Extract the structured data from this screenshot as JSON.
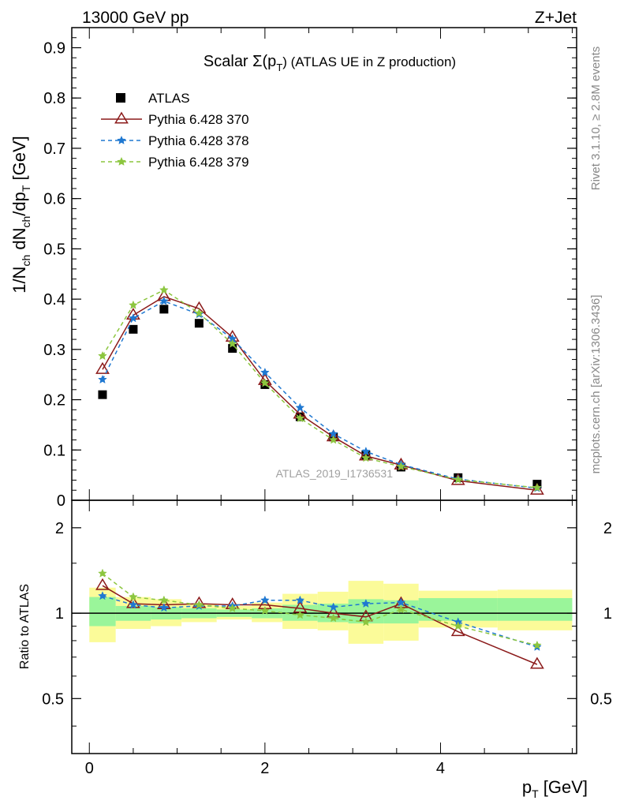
{
  "header": {
    "left": "13000 GeV pp",
    "right": "Z+Jet"
  },
  "side_labels": {
    "rivet": "Rivet 3.1.10, ≥ 2.8M events",
    "mcplots": "mcplots.cern.ch [arXiv:1306.3436]"
  },
  "chart_data": {
    "type": "scatter",
    "title_main": "Scalar Σ(p",
    "title_sub": "T",
    "title_rest": ") (ATLAS UE in Z production)",
    "analysis_id": "ATLAS_2019_I1736531",
    "xlabel": "p",
    "xlabel_sub": "T",
    "xlabel_unit": " [GeV]",
    "ylabel": "1/N_ch dN_ch/dp_T [GeV]",
    "ylabel_ratio": "Ratio to ATLAS",
    "xlim": [
      -0.2,
      5.55
    ],
    "ylim": [
      0,
      0.94
    ],
    "ratio_ylim": [
      0.32,
      2.5
    ],
    "ratio_log": true,
    "x_ticks": [
      "0",
      "2",
      "4"
    ],
    "y_ticks": [
      "0",
      "0.1",
      "0.2",
      "0.3",
      "0.4",
      "0.5",
      "0.6",
      "0.7",
      "0.8",
      "0.9"
    ],
    "ratio_ticks": [
      "0.5",
      "1",
      "2"
    ],
    "legend_position": "top-left",
    "x": [
      0.15,
      0.5,
      0.85,
      1.25,
      1.63,
      2.0,
      2.4,
      2.78,
      3.15,
      3.55,
      4.2,
      5.1
    ],
    "bin_edges": [
      0.0,
      0.3,
      0.7,
      1.05,
      1.45,
      1.85,
      2.2,
      2.6,
      2.95,
      3.35,
      3.75,
      4.65,
      5.5
    ],
    "series": [
      {
        "name": "ATLAS",
        "style": "data",
        "color": "#000000",
        "values": [
          0.21,
          0.34,
          0.38,
          0.352,
          0.302,
          0.23,
          0.166,
          0.126,
          0.09,
          0.066,
          0.045,
          0.032
        ]
      },
      {
        "name": "Pythia 6.428 370",
        "style": "solid-triangle",
        "color": "#8b1a1a",
        "values": [
          0.26,
          0.368,
          0.405,
          0.381,
          0.324,
          0.238,
          0.171,
          0.126,
          0.088,
          0.07,
          0.039,
          0.02
        ]
      },
      {
        "name": "Pythia 6.428 378",
        "style": "dashed-star",
        "color": "#1f78d1",
        "values": [
          0.24,
          0.362,
          0.396,
          0.37,
          0.321,
          0.254,
          0.184,
          0.132,
          0.097,
          0.071,
          0.042,
          0.024
        ]
      },
      {
        "name": "Pythia 6.428 379",
        "style": "dashed-star",
        "color": "#8cc63f",
        "values": [
          0.287,
          0.388,
          0.418,
          0.372,
          0.311,
          0.233,
          0.163,
          0.12,
          0.084,
          0.067,
          0.041,
          0.025
        ]
      }
    ],
    "ratio_series": [
      {
        "name": "Pythia 6.428 370",
        "values": [
          1.25,
          1.08,
          1.07,
          1.08,
          1.07,
          1.07,
          1.04,
          1.0,
          0.97,
          1.08,
          0.86,
          0.66
        ]
      },
      {
        "name": "Pythia 6.428 378",
        "values": [
          1.15,
          1.07,
          1.045,
          1.06,
          1.06,
          1.11,
          1.11,
          1.05,
          1.08,
          1.09,
          0.93,
          0.76
        ]
      },
      {
        "name": "Pythia 6.428 379",
        "values": [
          1.38,
          1.14,
          1.11,
          1.07,
          1.04,
          1.02,
          0.985,
          0.96,
          0.93,
          1.03,
          0.9,
          0.77
        ]
      }
    ],
    "band_inner": [
      [
        0.9,
        1.14
      ],
      [
        0.94,
        1.06
      ],
      [
        0.95,
        1.05
      ],
      [
        0.96,
        1.04
      ],
      [
        0.97,
        1.03
      ],
      [
        0.96,
        1.04
      ],
      [
        0.94,
        1.07
      ],
      [
        0.93,
        1.08
      ],
      [
        0.92,
        1.12
      ],
      [
        0.92,
        1.11
      ],
      [
        0.94,
        1.13
      ],
      [
        0.94,
        1.13
      ]
    ],
    "band_outer": [
      [
        0.79,
        1.23
      ],
      [
        0.88,
        1.14
      ],
      [
        0.9,
        1.12
      ],
      [
        0.93,
        1.08
      ],
      [
        0.95,
        1.06
      ],
      [
        0.93,
        1.09
      ],
      [
        0.88,
        1.17
      ],
      [
        0.87,
        1.19
      ],
      [
        0.78,
        1.3
      ],
      [
        0.8,
        1.27
      ],
      [
        0.89,
        1.2
      ],
      [
        0.87,
        1.21
      ]
    ]
  }
}
